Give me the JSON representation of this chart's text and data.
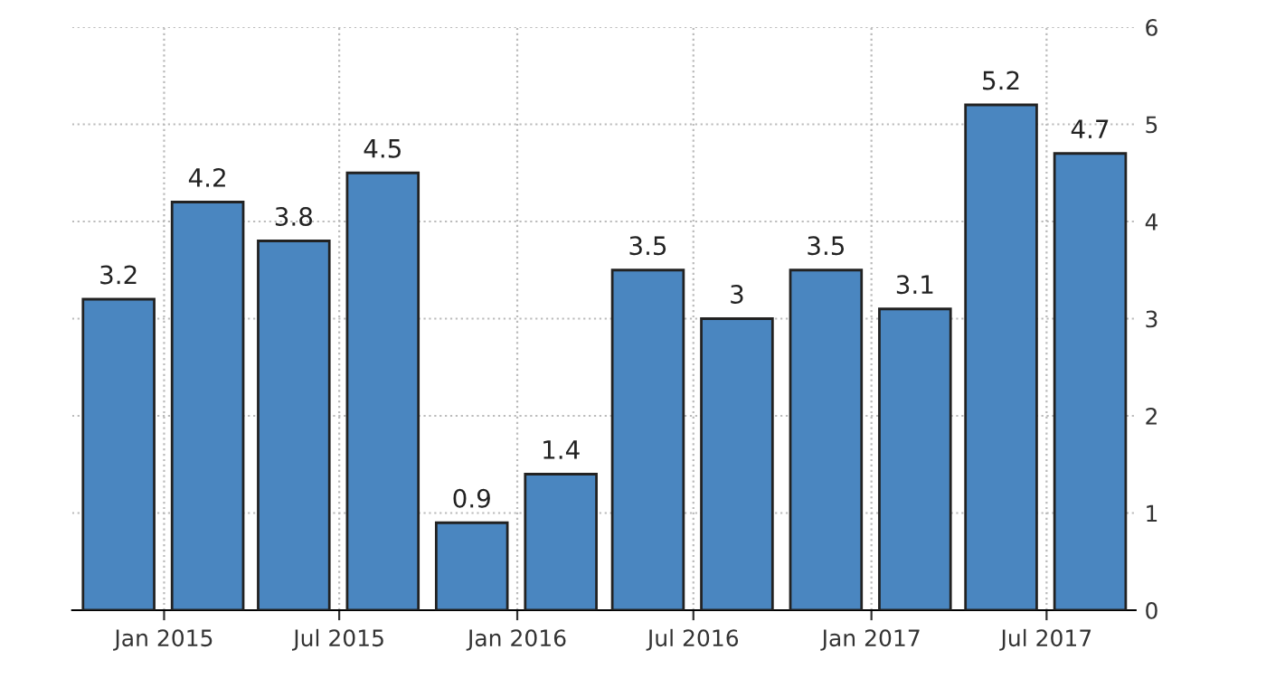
{
  "chart_data": {
    "type": "bar",
    "x": [
      "2014-11-15",
      "2015-02-15",
      "2015-05-15",
      "2015-08-15",
      "2015-11-15",
      "2016-02-15",
      "2016-05-15",
      "2016-08-15",
      "2016-11-15",
      "2017-02-15",
      "2017-05-15",
      "2017-08-15"
    ],
    "values": [
      3.2,
      4.2,
      3.8,
      4.5,
      0.9,
      1.4,
      3.5,
      3,
      3.5,
      3.1,
      5.2,
      4.7
    ],
    "color": "#4a86c0",
    "data_labels": true,
    "xlim": [
      "2014-09-28",
      "2017-10-01"
    ],
    "xticks": [
      {
        "value": "2015-01-01",
        "label": "Jan 2015"
      },
      {
        "value": "2015-07-01",
        "label": "Jul 2015"
      },
      {
        "value": "2016-01-01",
        "label": "Jan 2016"
      },
      {
        "value": "2016-07-01",
        "label": "Jul 2016"
      },
      {
        "value": "2017-01-01",
        "label": "Jan 2017"
      },
      {
        "value": "2017-07-01",
        "label": "Jul 2017"
      }
    ],
    "ylim": [
      0,
      6
    ],
    "yticks": [
      0,
      1,
      2,
      3,
      4,
      5,
      6
    ],
    "grid": true
  }
}
